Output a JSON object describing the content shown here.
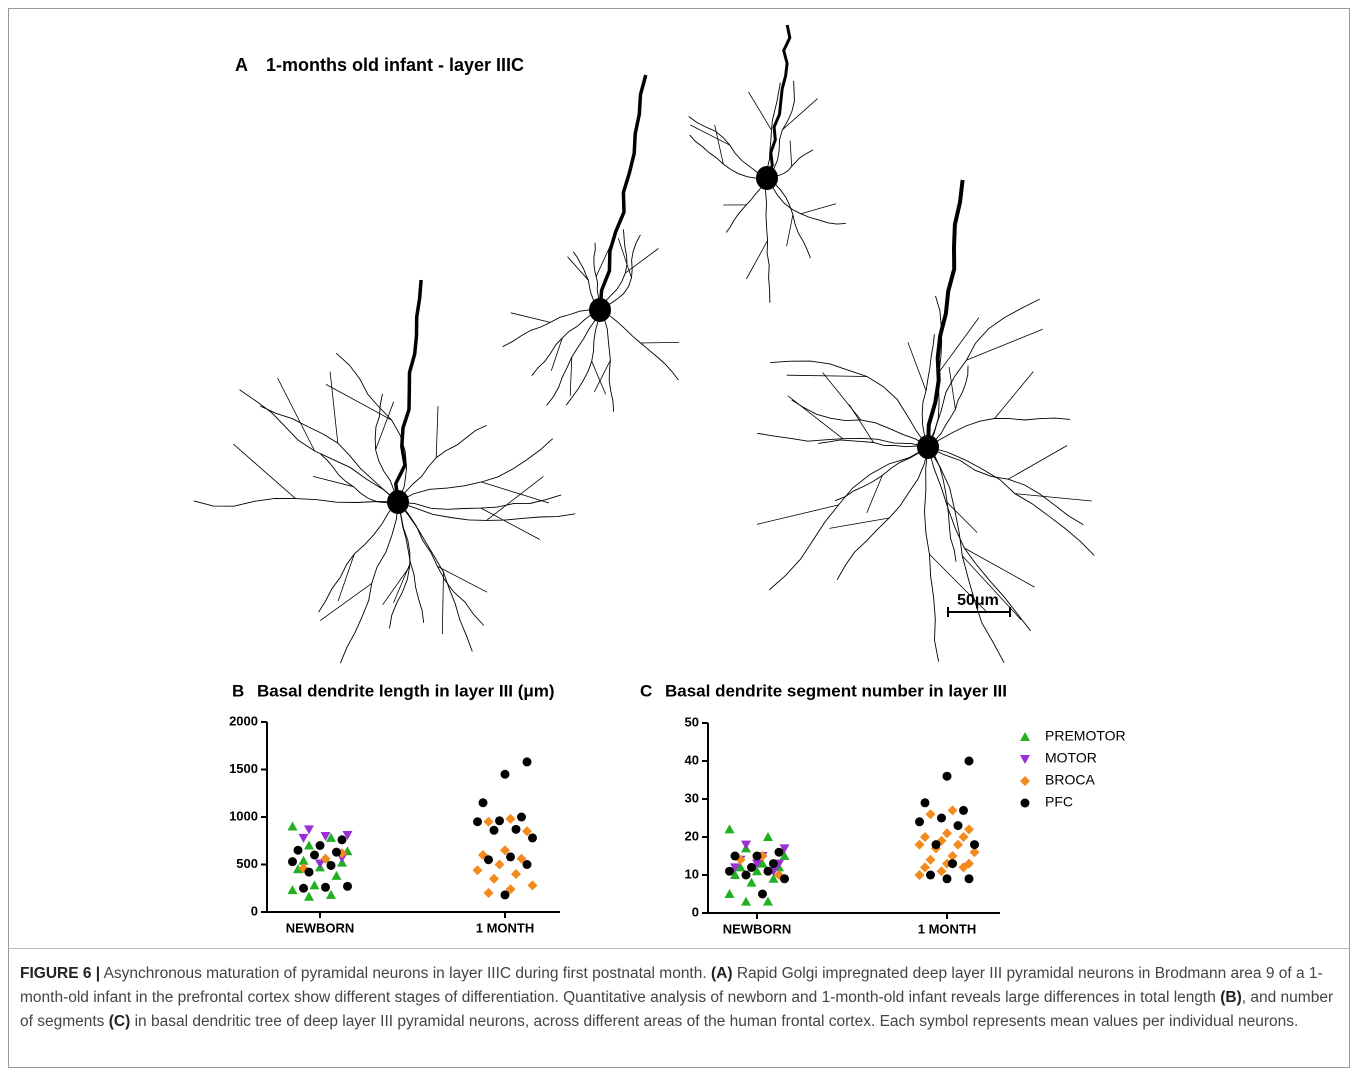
{
  "panel_a": {
    "label": "A",
    "title": "1-months old infant - layer IIIC",
    "scale_bar": "50μm"
  },
  "chart_data": [
    {
      "type": "scatter",
      "label": "B",
      "title": "Basal dendrite length in layer III (μm)",
      "categories": [
        "NEWBORN",
        "1 MONTH"
      ],
      "ylim": [
        0,
        2000
      ],
      "yticks": [
        0,
        500,
        1000,
        1500,
        2000
      ],
      "series": [
        {
          "color": "#22b022",
          "marker": "triangle-up",
          "values": [
            [
              900,
              780,
              700,
              640,
              560,
              540,
              520,
              470,
              450,
              380,
              280,
              230,
              180,
              160
            ],
            []
          ]
        },
        {
          "color": "#9a2fd6",
          "marker": "triangle-down",
          "values": [
            [
              870,
              810,
              800,
              780,
              570,
              510
            ],
            []
          ]
        },
        {
          "color": "#f28a1e",
          "marker": "diamond",
          "values": [
            [
              560,
              460,
              620
            ],
            [
              980,
              950,
              850,
              650,
              600,
              560,
              500,
              440,
              400,
              350,
              280,
              240,
              200
            ]
          ]
        },
        {
          "color": "#000000",
          "marker": "circle",
          "values": [
            [
              760,
              700,
              650,
              630,
              600,
              530,
              490,
              420,
              270,
              260,
              250
            ],
            [
              1580,
              1450,
              1150,
              1000,
              960,
              950,
              870,
              860,
              780,
              580,
              550,
              500,
              180
            ]
          ]
        }
      ]
    },
    {
      "type": "scatter",
      "label": "C",
      "title": "Basal dendrite segment number in layer III",
      "categories": [
        "NEWBORN",
        "1 MONTH"
      ],
      "ylim": [
        0,
        50
      ],
      "yticks": [
        0,
        10,
        20,
        30,
        40,
        50
      ],
      "legend": "right",
      "series": [
        {
          "name": "PREMOTOR",
          "color": "#22b022",
          "marker": "triangle-up",
          "values": [
            [
              22,
              20,
              17,
              15,
              13,
              12,
              12,
              11,
              10,
              9,
              8,
              5,
              3,
              3
            ],
            []
          ]
        },
        {
          "name": "MOTOR",
          "color": "#9a2fd6",
          "marker": "triangle-down",
          "values": [
            [
              18,
              17,
              15,
              14,
              13,
              13,
              12,
              11
            ],
            []
          ]
        },
        {
          "name": "BROCA",
          "color": "#f28a1e",
          "marker": "diamond",
          "values": [
            [
              15,
              14,
              10
            ],
            [
              27,
              26,
              22,
              21,
              20,
              20,
              19,
              18,
              18,
              17,
              16,
              15,
              14,
              13,
              13,
              12,
              12,
              11,
              10
            ]
          ]
        },
        {
          "name": "PFC",
          "color": "#000000",
          "marker": "circle",
          "values": [
            [
              16,
              15,
              15,
              13,
              12,
              11,
              11,
              10,
              9,
              5
            ],
            [
              40,
              36,
              29,
              27,
              25,
              24,
              23,
              18,
              18,
              13,
              10,
              9,
              9
            ]
          ]
        }
      ]
    }
  ],
  "caption": [
    {
      "text": "FIGURE 6 |",
      "bold": true
    },
    {
      "text": " Asynchronous maturation of pyramidal neurons in layer IIIC during first postnatal month. "
    },
    {
      "text": "(A)",
      "bold": true
    },
    {
      "text": " Rapid Golgi impregnated deep layer III pyramidal neurons in Brodmann area 9 of a 1-month-old infant in the prefrontal cortex show different stages of differentiation. Quantitative analysis of newborn and 1-month-old infant reveals large differences in total length "
    },
    {
      "text": "(B)",
      "bold": true
    },
    {
      "text": ", and number of segments "
    },
    {
      "text": "(C)",
      "bold": true
    },
    {
      "text": " in basal dendritic tree of deep layer III pyramidal neurons, across different areas of the human frontal cortex. Each symbol represents mean values per individual neurons."
    }
  ]
}
